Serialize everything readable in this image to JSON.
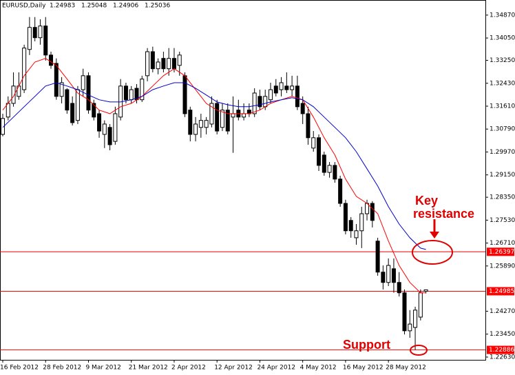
{
  "chart_data": {
    "type": "candlestick",
    "symbol": "EURUSD,Daily",
    "quote": [
      1.24983,
      1.25048,
      1.24906,
      1.25036
    ],
    "categories": [
      "16 Feb 2012",
      null,
      null,
      null,
      null,
      null,
      null,
      null,
      "28 Feb 2012",
      null,
      null,
      null,
      null,
      null,
      null,
      null,
      "9 Mar 2012",
      null,
      null,
      null,
      null,
      null,
      null,
      null,
      "21 Mar 2012",
      null,
      null,
      null,
      null,
      null,
      null,
      null,
      "2 Apr 2012",
      null,
      null,
      null,
      null,
      null,
      null,
      null,
      "12 Apr 2012",
      null,
      null,
      null,
      null,
      null,
      null,
      null,
      "24 Apr 2012",
      null,
      null,
      null,
      null,
      null,
      null,
      null,
      "4 May 2012",
      null,
      null,
      null,
      null,
      null,
      null,
      null,
      "16 May 2012",
      null,
      null,
      null,
      null,
      null,
      null,
      null,
      "28 May 2012",
      null,
      null,
      null,
      null,
      null,
      null,
      null
    ],
    "open": [
      1.306,
      1.3122,
      1.3171,
      1.3196,
      1.322,
      1.3364,
      1.3443,
      1.3406,
      1.3448,
      1.3344,
      1.3314,
      1.3196,
      1.322,
      1.3171,
      1.311,
      1.322,
      1.327,
      1.3171,
      1.3134,
      1.306,
      1.3085,
      1.3035,
      1.3122,
      1.3233,
      1.3184,
      1.3225,
      1.3184,
      1.327,
      1.3356,
      1.3295,
      1.3332,
      1.3295,
      1.3332,
      1.3307,
      1.327,
      1.3147,
      1.306,
      1.3085,
      1.3085,
      1.3097,
      1.3171,
      1.3085,
      1.3147,
      1.3122,
      1.3147,
      1.3122,
      1.3147,
      1.3134,
      1.3196,
      1.3159,
      1.3184,
      1.3233,
      1.322,
      1.3233,
      1.322,
      1.3233,
      1.3171,
      1.3134,
      1.3011,
      1.3048,
      1.2986,
      1.2924,
      1.2949,
      1.29,
      1.2813,
      1.2752,
      1.269,
      1.2715,
      1.2776,
      1.2813,
      1.2678,
      1.2567,
      1.253,
      1.2579,
      1.253,
      1.2493,
      1.2357,
      1.2369,
      1.2406,
      1.24983
    ],
    "high": [
      1.3134,
      1.3196,
      1.3282,
      1.3282,
      1.3381,
      1.348,
      1.348,
      1.3472,
      1.348,
      1.3356,
      1.3332,
      1.3265,
      1.3225,
      1.3196,
      1.3233,
      1.3295,
      1.3282,
      1.3184,
      1.3147,
      1.311,
      1.3097,
      1.3159,
      1.3258,
      1.3245,
      1.3233,
      1.324,
      1.327,
      1.3369,
      1.3374,
      1.3332,
      1.3356,
      1.3369,
      1.3369,
      1.3356,
      1.3282,
      1.3159,
      1.3122,
      1.3134,
      1.3122,
      1.3196,
      1.3184,
      1.3171,
      1.3171,
      1.3196,
      1.3184,
      1.3171,
      1.3171,
      1.3225,
      1.322,
      1.322,
      1.3245,
      1.3258,
      1.3265,
      1.3282,
      1.327,
      1.327,
      1.3196,
      1.3159,
      1.3072,
      1.306,
      1.2998,
      1.2961,
      1.2961,
      1.2912,
      1.2826,
      1.2764,
      1.2739,
      1.2801,
      1.2826,
      1.2821,
      1.269,
      1.2591,
      1.2616,
      1.2616,
      1.2567,
      1.2505,
      1.2431,
      1.2443,
      1.2505,
      1.25048
    ],
    "low": [
      1.3053,
      1.311,
      1.3159,
      1.3184,
      1.3208,
      1.3344,
      1.3393,
      1.3381,
      1.3324,
      1.3295,
      1.3184,
      1.3171,
      1.3134,
      1.3092,
      1.3097,
      1.3196,
      1.3134,
      1.311,
      1.3048,
      1.3011,
      1.3003,
      1.3023,
      1.311,
      1.3171,
      1.3171,
      1.3171,
      1.3176,
      1.325,
      1.3282,
      1.3275,
      1.3282,
      1.327,
      1.3282,
      1.327,
      1.3122,
      1.3035,
      1.3035,
      1.3048,
      1.306,
      1.3085,
      1.306,
      1.3072,
      1.306,
      1.2994,
      1.311,
      1.311,
      1.3122,
      1.3122,
      1.3147,
      1.3147,
      1.3171,
      1.3196,
      1.3196,
      1.3208,
      1.3196,
      1.3147,
      1.3097,
      1.3023,
      1.2998,
      1.2929,
      1.2912,
      1.2905,
      1.2887,
      1.2801,
      1.2702,
      1.269,
      1.2665,
      1.2653,
      1.2752,
      1.2727,
      1.2554,
      1.2505,
      1.2517,
      1.2493,
      1.248,
      1.2344,
      1.2332,
      1.2289,
      1.2394,
      1.24906
    ],
    "close": [
      1.3117,
      1.3171,
      1.3233,
      1.3233,
      1.3369,
      1.3443,
      1.3406,
      1.3448,
      1.3344,
      1.3307,
      1.3196,
      1.3245,
      1.3147,
      1.3102,
      1.322,
      1.327,
      1.3147,
      1.3122,
      1.3072,
      1.3097,
      1.3023,
      1.3134,
      1.3233,
      1.3184,
      1.322,
      1.3184,
      1.3258,
      1.3356,
      1.3295,
      1.3319,
      1.3295,
      1.3332,
      1.3295,
      1.3344,
      1.3134,
      1.306,
      1.3097,
      1.311,
      1.311,
      1.3171,
      1.3072,
      1.3147,
      1.3072,
      1.3134,
      1.3122,
      1.3134,
      1.3134,
      1.3208,
      1.3159,
      1.3196,
      1.322,
      1.3208,
      1.3245,
      1.322,
      1.3233,
      1.3159,
      1.3134,
      1.3048,
      1.3048,
      1.2949,
      1.2924,
      1.2949,
      1.29,
      1.2813,
      1.2715,
      1.2715,
      1.2715,
      1.2776,
      1.2813,
      1.2752,
      1.2567,
      1.253,
      1.2591,
      1.253,
      1.2493,
      1.2357,
      1.2381,
      1.2431,
      1.2493,
      1.25036
    ],
    "moving_averages": [
      {
        "color": "#ff0000",
        "x": [
          0,
          2,
          4,
          6,
          8,
          10,
          12,
          14,
          16,
          18,
          20,
          22,
          24,
          26,
          28,
          30,
          32,
          34,
          36,
          38,
          40,
          42,
          44,
          46,
          48,
          50,
          52,
          54,
          56,
          58,
          60,
          62,
          64,
          66,
          68,
          70,
          72,
          74,
          76,
          78,
          79
        ],
        "values": [
          1.3147,
          1.3196,
          1.327,
          1.3319,
          1.3332,
          1.3307,
          1.3258,
          1.3208,
          1.3184,
          1.3147,
          1.3134,
          1.3159,
          1.3171,
          1.3196,
          1.3233,
          1.327,
          1.3295,
          1.327,
          1.322,
          1.3171,
          1.3147,
          1.3134,
          1.3134,
          1.3134,
          1.3147,
          1.3171,
          1.3184,
          1.3196,
          1.3184,
          1.3122,
          1.3048,
          1.2986,
          1.29,
          1.2838,
          1.2813,
          1.2776,
          1.2678,
          1.2591,
          1.253,
          1.2493,
          1.2493
        ]
      },
      {
        "color": "#0000cc",
        "x": [
          0,
          2,
          4,
          6,
          8,
          10,
          12,
          14,
          16,
          18,
          20,
          22,
          24,
          26,
          28,
          30,
          32,
          34,
          36,
          38,
          40,
          42,
          44,
          46,
          48,
          50,
          52,
          54,
          56,
          58,
          60,
          62,
          64,
          66,
          68,
          70,
          72,
          74,
          76,
          78,
          79
        ],
        "values": [
          1.3085,
          1.3122,
          1.3159,
          1.3196,
          1.3233,
          1.3245,
          1.3233,
          1.322,
          1.3201,
          1.3184,
          1.3176,
          1.3176,
          1.3184,
          1.3196,
          1.322,
          1.3233,
          1.3245,
          1.3245,
          1.3225,
          1.3201,
          1.3176,
          1.3166,
          1.3159,
          1.3159,
          1.3166,
          1.3176,
          1.3184,
          1.3191,
          1.3184,
          1.3159,
          1.3122,
          1.3085,
          1.3048,
          1.2998,
          1.2937,
          1.2875,
          1.2801,
          1.2739,
          1.269,
          1.2653,
          1.2648
        ]
      }
    ],
    "levels": [
      1.26397,
      1.24985,
      1.22886
    ],
    "level_color": "#ff0000",
    "annotations": [
      "Key",
      "resistance",
      "Support"
    ],
    "annotation_color": "#e00000",
    "ylim": [
      1.2253,
      1.3541
    ],
    "yticks": [
      {
        "value": 1.3487,
        "label": "1.34870"
      },
      {
        "value": 1.3405,
        "label": "1.34050"
      },
      {
        "value": 1.3325,
        "label": "1.33250"
      },
      {
        "value": 1.3243,
        "label": "1.32430"
      },
      {
        "value": 1.3161,
        "label": "1.31610"
      },
      {
        "value": 1.3079,
        "label": "1.30790"
      },
      {
        "value": 1.2997,
        "label": "1.29970"
      },
      {
        "value": 1.2915,
        "label": "1.29150"
      },
      {
        "value": 1.2835,
        "label": "1.28350"
      },
      {
        "value": 1.2753,
        "label": "1.27530"
      },
      {
        "value": 1.2671,
        "label": "1.26710"
      },
      {
        "value": 1.2589,
        "label": "1.25890"
      },
      {
        "value": 1.2427,
        "label": "1.24270"
      },
      {
        "value": 1.2345,
        "label": "1.23450"
      },
      {
        "value": 1.2263,
        "label": "1.22630"
      }
    ],
    "bull_fill": "#ffffff",
    "bear_fill": "#000000"
  }
}
